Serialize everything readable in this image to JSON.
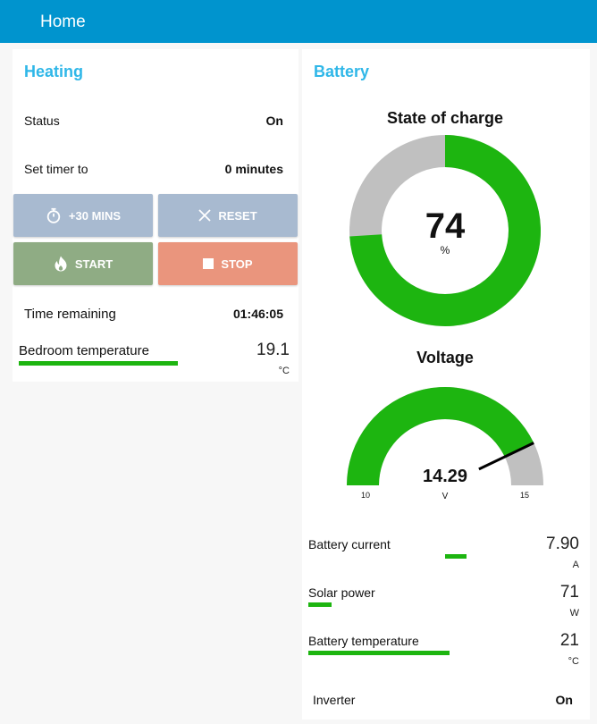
{
  "header": {
    "title": "Home"
  },
  "heating": {
    "title": "Heating",
    "status": {
      "label": "Status",
      "value": "On"
    },
    "timer": {
      "label": "Set timer to",
      "value": "0 minutes"
    },
    "buttons": {
      "add": {
        "label": "+30 MINS",
        "icon": "stopwatch-icon",
        "color": "#a8bad0"
      },
      "reset": {
        "label": "RESET",
        "icon": "close-icon",
        "color": "#a8bad0"
      },
      "start": {
        "label": "START",
        "icon": "flame-icon",
        "color": "#8fac84"
      },
      "stop": {
        "label": "STOP",
        "icon": "stop-square-icon",
        "color": "#ea957d"
      }
    },
    "remaining": {
      "label": "Time remaining",
      "value": "01:46:05"
    },
    "bedroom_temperature": {
      "label": "Bedroom temperature",
      "value": "19.1",
      "unit": "°C"
    }
  },
  "battery": {
    "title": "Battery",
    "state_of_charge": {
      "title": "State of charge",
      "value": "74",
      "unit": "%",
      "percent": 74,
      "fill_color": "#1db510",
      "track_color": "#c0c0c0"
    },
    "voltage": {
      "title": "Voltage",
      "value": "14.29",
      "unit": "V",
      "min": "10",
      "max": "15",
      "fill_color": "#1db510",
      "track_color": "#c0c0c0",
      "needle_color": "#000000"
    },
    "levels": [
      {
        "label": "Battery current",
        "value": "7.90",
        "unit": "A"
      },
      {
        "label": "Solar power",
        "value": "71",
        "unit": "W"
      },
      {
        "label": "Battery temperature",
        "value": "21",
        "unit": "°C"
      }
    ],
    "inverter": {
      "label": "Inverter",
      "value": "On"
    }
  },
  "colors": {
    "header": "#0094ce",
    "accent": "#2fb7e8",
    "level": "#1db510"
  }
}
